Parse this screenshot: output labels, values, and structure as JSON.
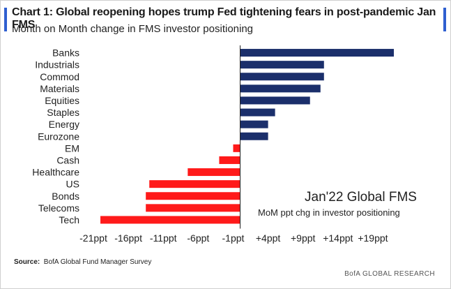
{
  "title": "Chart 1: Global reopening hopes trump Fed tightening fears in post-pandemic Jan FMS",
  "subtitle": "Month on Month change in FMS investor positioning",
  "source_label": "Source:",
  "source_text": "BofA Global Fund Manager Survey",
  "brand": "BofA GLOBAL RESEARCH",
  "colors": {
    "positive": "#1b2f6b",
    "negative": "#ff1a1a",
    "accent": "#2f5fd0"
  },
  "chart_data": {
    "type": "bar",
    "orientation": "horizontal",
    "categories": [
      "Banks",
      "Industrials",
      "Commod",
      "Materials",
      "Equities",
      "Staples",
      "Energy",
      "Eurozone",
      "EM",
      "Cash",
      "Healthcare",
      "US",
      "Bonds",
      "Telecoms",
      "Tech"
    ],
    "values": [
      22,
      12,
      12,
      11.5,
      10,
      5,
      4,
      4,
      -1,
      -3,
      -7.5,
      -13,
      -13.5,
      -13.5,
      -20
    ],
    "xlim": [
      -21,
      21
    ],
    "xticks": [
      -21,
      -16,
      -11,
      -6,
      -1,
      4,
      9,
      14,
      19
    ],
    "xtick_labels": [
      "-21ppt",
      "-16ppt",
      "-11ppt",
      "-6ppt",
      "-1ppt",
      "+4ppt",
      "+9ppt",
      "+14ppt",
      "+19ppt"
    ],
    "annotation_title": "Jan'22 Global FMS",
    "annotation_subtitle": "MoM ppt chg in investor positioning",
    "grid": false,
    "legend": "none"
  }
}
